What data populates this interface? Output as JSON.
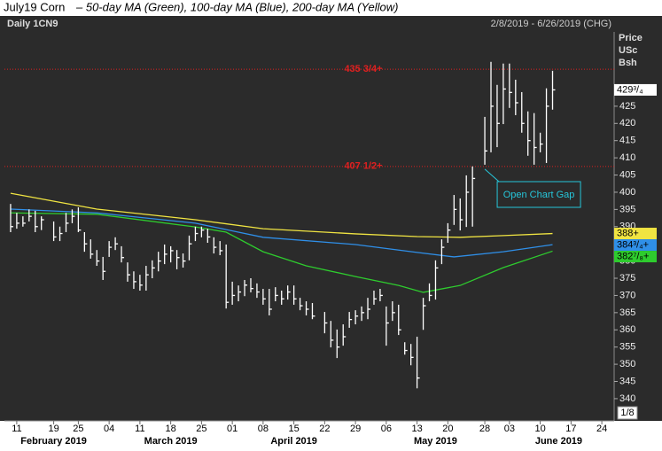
{
  "chart_data": {
    "type": "ohlc",
    "title": "July19 Corn",
    "subtitle": "– 50-day MA (Green), 100-day MA (Blue), 200-day MA (Yellow)",
    "symbol_label": "Daily 1CN9",
    "date_range": "2/8/2019 - 6/26/2019 (CHG)",
    "y_axis_label": [
      "Price",
      "USc",
      "Bsh"
    ],
    "increment_label": "1/8",
    "color": "#ffffff",
    "categories": [
      "2019-02-08",
      "2019-02-11",
      "2019-02-12",
      "2019-02-13",
      "2019-02-14",
      "2019-02-15",
      "2019-02-19",
      "2019-02-20",
      "2019-02-21",
      "2019-02-22",
      "2019-02-25",
      "2019-02-26",
      "2019-02-27",
      "2019-02-28",
      "2019-03-01",
      "2019-03-04",
      "2019-03-05",
      "2019-03-06",
      "2019-03-07",
      "2019-03-08",
      "2019-03-11",
      "2019-03-12",
      "2019-03-13",
      "2019-03-14",
      "2019-03-15",
      "2019-03-18",
      "2019-03-19",
      "2019-03-20",
      "2019-03-21",
      "2019-03-22",
      "2019-03-25",
      "2019-03-26",
      "2019-03-27",
      "2019-03-28",
      "2019-03-29",
      "2019-04-01",
      "2019-04-02",
      "2019-04-03",
      "2019-04-04",
      "2019-04-05",
      "2019-04-08",
      "2019-04-09",
      "2019-04-10",
      "2019-04-11",
      "2019-04-12",
      "2019-04-15",
      "2019-04-16",
      "2019-04-17",
      "2019-04-18",
      "2019-04-22",
      "2019-04-23",
      "2019-04-24",
      "2019-04-25",
      "2019-04-26",
      "2019-04-29",
      "2019-04-30",
      "2019-05-01",
      "2019-05-02",
      "2019-05-03",
      "2019-05-06",
      "2019-05-07",
      "2019-05-08",
      "2019-05-09",
      "2019-05-10",
      "2019-05-13",
      "2019-05-14",
      "2019-05-15",
      "2019-05-16",
      "2019-05-17",
      "2019-05-20",
      "2019-05-21",
      "2019-05-22",
      "2019-05-23",
      "2019-05-24",
      "2019-05-28",
      "2019-05-29",
      "2019-05-30",
      "2019-05-31",
      "2019-06-03",
      "2019-06-04",
      "2019-06-05",
      "2019-06-06",
      "2019-06-07",
      "2019-06-10",
      "2019-06-11",
      "2019-06-12"
    ],
    "high": [
      396.6,
      394,
      393,
      395,
      394.6,
      393,
      391.5,
      390,
      394,
      395,
      395.6,
      388.4,
      386.3,
      383.2,
      381.2,
      385.8,
      386.9,
      384.3,
      379.6,
      377,
      376,
      378.6,
      380.2,
      382.7,
      384.8,
      384.3,
      383.2,
      382.2,
      387.4,
      390,
      390,
      389.4,
      386.9,
      385.8,
      384.8,
      374,
      372.9,
      374.5,
      375,
      373.5,
      371.9,
      371.9,
      372.4,
      371.4,
      372.9,
      372.9,
      369.3,
      368.3,
      367.8,
      365.2,
      362.6,
      360.1,
      361.6,
      365.2,
      365.7,
      366.8,
      369.3,
      371.4,
      371.9,
      366.8,
      368.3,
      367.3,
      356.4,
      355.9,
      358,
      369.3,
      373.5,
      380.2,
      386.3,
      391,
      399.2,
      398.2,
      404.9,
      407.5,
      421.9,
      437.9,
      431.2,
      437.4,
      437.4,
      432.7,
      429.1,
      423.5,
      423,
      417.3,
      430.2,
      435.3
    ],
    "low": [
      388.4,
      389.4,
      390,
      391.5,
      388.4,
      389,
      385.8,
      385.8,
      388.4,
      391,
      388.4,
      382.7,
      380.7,
      378.6,
      374.5,
      381.2,
      383.2,
      379.6,
      374,
      371.9,
      371.4,
      371.4,
      375,
      377,
      379.1,
      379.6,
      377.6,
      378.1,
      380.2,
      385.8,
      386.9,
      385.3,
      382.2,
      381.7,
      366.2,
      367.3,
      368.3,
      369.8,
      370.9,
      369.3,
      367.3,
      364.2,
      368.3,
      367.3,
      368.8,
      367.3,
      365.7,
      364.2,
      363.1,
      359,
      354.9,
      351.8,
      355.4,
      360.6,
      361.6,
      362.6,
      363.1,
      367.3,
      368.3,
      355.4,
      362.6,
      358.5,
      352.8,
      349.7,
      343,
      360,
      368.3,
      368.8,
      379.1,
      385.3,
      390.5,
      388.9,
      389.9,
      390,
      408,
      411.6,
      413.1,
      419.8,
      424.5,
      422.4,
      417.3,
      410.6,
      408,
      411.6,
      408.5,
      424
    ],
    "close": [
      390,
      391,
      391,
      393,
      390,
      392,
      387,
      388,
      391,
      393,
      389,
      385,
      382,
      380,
      377,
      384,
      385,
      381,
      376,
      374,
      373,
      376,
      378,
      380,
      382,
      383,
      381,
      380,
      385,
      388,
      389,
      387,
      384,
      383,
      368,
      370,
      371,
      373,
      372,
      371,
      369,
      366,
      370,
      369,
      371,
      369,
      367,
      366,
      364,
      362,
      357,
      355,
      358,
      363,
      364,
      365,
      366,
      369,
      370,
      362,
      365,
      360,
      354,
      352,
      346,
      367,
      370,
      378,
      384,
      389,
      395,
      392,
      400,
      404,
      412,
      425,
      420,
      430,
      429,
      426,
      420,
      415,
      413,
      414,
      425,
      429.75
    ],
    "lines": [
      {
        "color": "#f0e442",
        "x": [
          "2019-02-08",
          "2019-02-28",
          "2019-03-22",
          "2019-04-08",
          "2019-04-29",
          "2019-05-13",
          "2019-05-22",
          "2019-05-31",
          "2019-06-12"
        ],
        "values": [
          399.7,
          395.1,
          392,
          389.4,
          387.9,
          387.1,
          386.9,
          387.4,
          388
        ]
      },
      {
        "color": "#2f8fe8",
        "x": [
          "2019-02-08",
          "2019-02-28",
          "2019-03-22",
          "2019-04-08",
          "2019-04-29",
          "2019-05-13",
          "2019-05-21",
          "2019-05-31",
          "2019-06-12"
        ],
        "values": [
          395.1,
          394,
          391,
          386.9,
          384.8,
          382.5,
          381.2,
          382.7,
          384.75
        ]
      },
      {
        "color": "#2ecc2e",
        "x": [
          "2019-02-08",
          "2019-02-28",
          "2019-03-22",
          "2019-03-29",
          "2019-04-08",
          "2019-04-17",
          "2019-04-29",
          "2019-05-08",
          "2019-05-14",
          "2019-05-22",
          "2019-05-31",
          "2019-06-12"
        ],
        "values": [
          394,
          393.6,
          389.9,
          388.4,
          382.7,
          378.6,
          375.5,
          372.9,
          370.9,
          372.9,
          378.1,
          382.875
        ]
      }
    ],
    "last_values": [
      {
        "value": 429.75,
        "label": "429³/₄",
        "color": "#ffffff"
      },
      {
        "value": 388,
        "label": "388+",
        "color": "#f0e442"
      },
      {
        "value": 384.75,
        "label": "384³/₄+",
        "color": "#2f8fe8"
      },
      {
        "value": 382.875,
        "label": "382⁷/₈+",
        "color": "#2ecc2e"
      }
    ],
    "reference_lines": [
      {
        "value": 435.75,
        "label": "435 3/4+",
        "color": "#e02020"
      },
      {
        "value": 407.5,
        "label": "407 1/2+",
        "color": "#e02020"
      }
    ],
    "annotation": {
      "text": "Open Chart Gap",
      "x": "2019-05-28",
      "y": 407.5
    },
    "xlim": [
      "2019-02-07",
      "2019-06-26"
    ],
    "ylim": [
      333.8,
      446.6
    ],
    "yticks": [
      340,
      345,
      350,
      355,
      360,
      365,
      370,
      375,
      380,
      385,
      390,
      395,
      400,
      405,
      410,
      415,
      420,
      425
    ],
    "xticks": [
      {
        "value": "2019-02-11",
        "label": "11"
      },
      {
        "value": "2019-02-19",
        "label": "19"
      },
      {
        "value": "2019-02-25",
        "label": "25"
      },
      {
        "value": "2019-03-04",
        "label": "04"
      },
      {
        "value": "2019-03-11",
        "label": "11"
      },
      {
        "value": "2019-03-18",
        "label": "18"
      },
      {
        "value": "2019-03-25",
        "label": "25"
      },
      {
        "value": "2019-04-01",
        "label": "01"
      },
      {
        "value": "2019-04-08",
        "label": "08"
      },
      {
        "value": "2019-04-15",
        "label": "15"
      },
      {
        "value": "2019-04-22",
        "label": "22"
      },
      {
        "value": "2019-04-29",
        "label": "29"
      },
      {
        "value": "2019-05-06",
        "label": "06"
      },
      {
        "value": "2019-05-13",
        "label": "13"
      },
      {
        "value": "2019-05-20",
        "label": "20"
      },
      {
        "value": "2019-05-28",
        "label": "28"
      },
      {
        "value": "2019-06-03",
        "label": "03"
      },
      {
        "value": "2019-06-10",
        "label": "10"
      },
      {
        "value": "2019-06-17",
        "label": "17"
      },
      {
        "value": "2019-06-24",
        "label": "24"
      }
    ],
    "months": [
      {
        "value": "2019-02-19",
        "label": "February 2019"
      },
      {
        "value": "2019-03-18",
        "label": "March 2019"
      },
      {
        "value": "2019-04-15",
        "label": "April 2019"
      },
      {
        "value": "2019-05-16",
        "label": "May 2019"
      },
      {
        "value": "2019-06-13",
        "label": "June 2019"
      }
    ]
  }
}
